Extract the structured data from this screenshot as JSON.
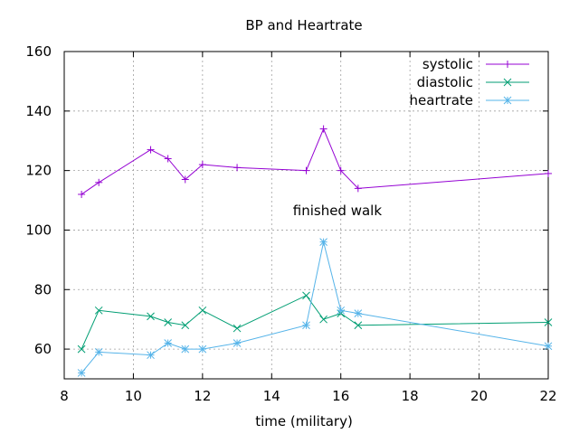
{
  "chart_data": {
    "type": "line",
    "title": "BP and Heartrate",
    "xlabel": "time (military)",
    "ylabel": "",
    "xlim": [
      8,
      22
    ],
    "ylim": [
      50,
      160
    ],
    "x_ticks": [
      8,
      10,
      12,
      14,
      16,
      18,
      20,
      22
    ],
    "y_ticks": [
      60,
      80,
      100,
      120,
      140,
      160
    ],
    "grid": true,
    "legend_position": "top-right",
    "annotations": [
      {
        "text": "finished walk",
        "x": 15.9,
        "y": 105
      }
    ],
    "series": [
      {
        "name": "systolic",
        "color": "#9400d3",
        "marker": "plus",
        "points": [
          [
            8.5,
            112
          ],
          [
            9,
            116
          ],
          [
            10.5,
            127
          ],
          [
            11,
            124
          ],
          [
            11.5,
            117
          ],
          [
            12,
            122
          ],
          [
            13,
            121
          ],
          [
            15,
            120
          ],
          [
            15.5,
            134
          ],
          [
            16,
            120
          ],
          [
            16.5,
            114
          ],
          [
            22,
            119
          ]
        ]
      },
      {
        "name": "diastolic",
        "color": "#009e73",
        "marker": "cross",
        "points": [
          [
            8.5,
            60
          ],
          [
            9,
            73
          ],
          [
            10.5,
            71
          ],
          [
            11,
            69
          ],
          [
            11.5,
            68
          ],
          [
            12,
            73
          ],
          [
            13,
            67
          ],
          [
            15,
            78
          ],
          [
            15.5,
            70
          ],
          [
            16,
            72
          ],
          [
            16.5,
            68
          ],
          [
            22,
            69
          ]
        ]
      },
      {
        "name": "heartrate",
        "color": "#56b4e9",
        "marker": "star",
        "points": [
          [
            8.5,
            52
          ],
          [
            9,
            59
          ],
          [
            10.5,
            58
          ],
          [
            11,
            62
          ],
          [
            11.5,
            60
          ],
          [
            12,
            60
          ],
          [
            13,
            62
          ],
          [
            15,
            68
          ],
          [
            15.5,
            96
          ],
          [
            16,
            73
          ],
          [
            16.5,
            72
          ],
          [
            22,
            61
          ]
        ]
      }
    ]
  }
}
